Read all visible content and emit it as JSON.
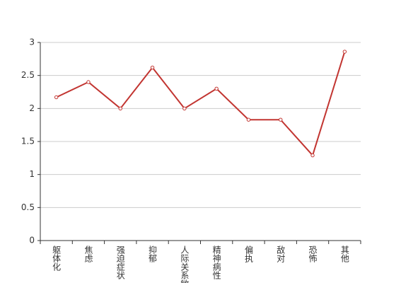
{
  "chart_data": {
    "type": "line",
    "categories": [
      "躯体化",
      "焦虑",
      "强迫症状",
      "抑郁",
      "人际关系敏感",
      "精神病性",
      "偏执",
      "敌对",
      "恐怖",
      "其他"
    ],
    "series": [
      {
        "color": "#c23531",
        "values": [
          2.17,
          2.4,
          2.0,
          2.62,
          2.0,
          2.3,
          1.83,
          1.83,
          1.29,
          2.86
        ]
      }
    ],
    "ylim": [
      0,
      3
    ],
    "yticks": [
      0,
      0.5,
      1,
      1.5,
      2,
      2.5,
      3
    ],
    "grid": true
  }
}
